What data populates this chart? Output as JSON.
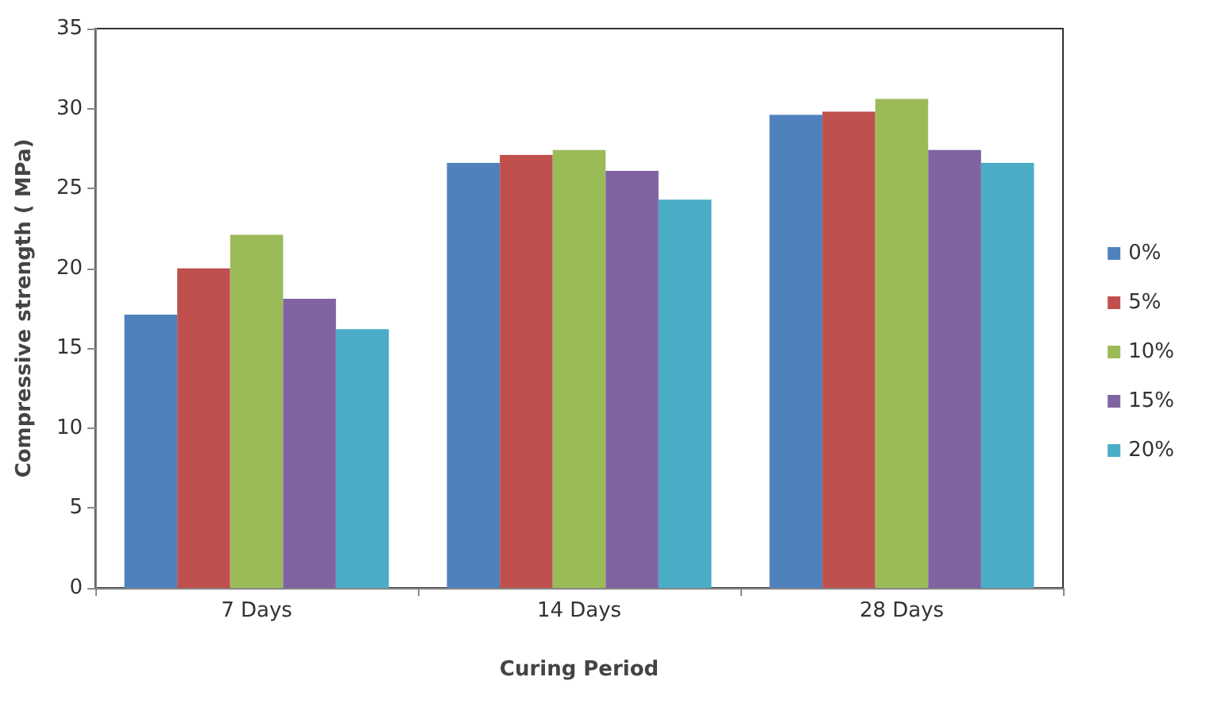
{
  "chart_data": {
    "type": "bar",
    "xlabel": "Curing Period",
    "ylabel": "Compressive strength ( MPa)",
    "categories": [
      "7 Days",
      "14 Days",
      "28 Days"
    ],
    "series": [
      {
        "name": "0%",
        "color": "#4f81bd",
        "values": [
          17.1,
          26.6,
          29.6
        ]
      },
      {
        "name": "5%",
        "color": "#c0504d",
        "values": [
          20.0,
          27.1,
          29.8
        ]
      },
      {
        "name": "10%",
        "color": "#9bbb59",
        "values": [
          22.1,
          27.4,
          30.6
        ]
      },
      {
        "name": "15%",
        "color": "#8064a2",
        "values": [
          18.1,
          26.1,
          27.4
        ]
      },
      {
        "name": "20%",
        "color": "#4bacc6",
        "values": [
          16.2,
          24.3,
          26.6
        ]
      }
    ],
    "ylim": [
      0,
      35
    ],
    "yticks": [
      0,
      5,
      10,
      15,
      20,
      25,
      30,
      35
    ],
    "grid": false,
    "legend": "right"
  }
}
